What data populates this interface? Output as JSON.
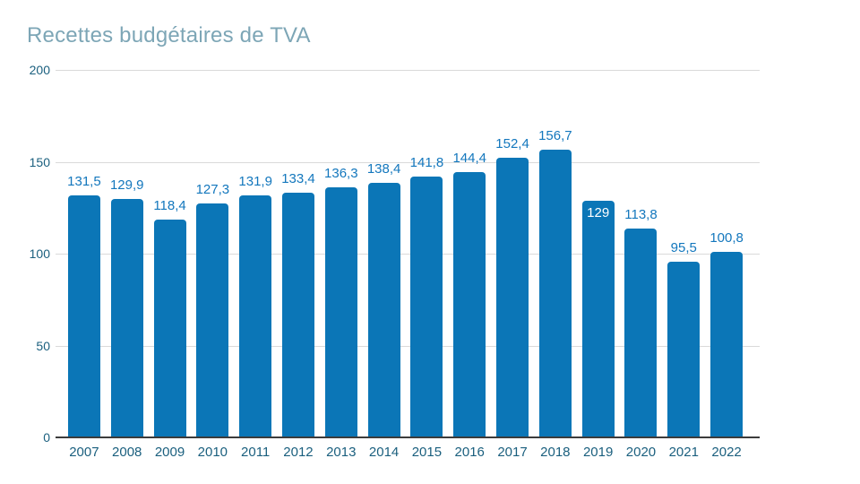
{
  "chart": {
    "title": "Recettes budgétaires de TVA"
  },
  "chart_data": {
    "type": "bar",
    "title": "Recettes budgétaires de TVA",
    "categories": [
      "2007",
      "2008",
      "2009",
      "2010",
      "2011",
      "2012",
      "2013",
      "2014",
      "2015",
      "2016",
      "2017",
      "2018",
      "2019",
      "2020",
      "2021",
      "2022"
    ],
    "values": [
      131.5,
      129.9,
      118.4,
      127.3,
      131.9,
      133.4,
      136.3,
      138.4,
      141.8,
      144.4,
      152.4,
      156.7,
      129,
      113.8,
      95.5,
      100.8
    ],
    "value_labels": [
      "131,5",
      "129,9",
      "118,4",
      "127,3",
      "131,9",
      "133,4",
      "136,3",
      "138,4",
      "141,8",
      "144,4",
      "152,4",
      "156,7",
      "129",
      "113,8",
      "95,5",
      "100,8"
    ],
    "inside_label_categories": [
      "2019"
    ],
    "xlabel": "",
    "ylabel": "",
    "ylim": [
      0,
      200
    ],
    "yticks": [
      0,
      50,
      100,
      150,
      200
    ],
    "grid": "horizontal",
    "legend": "none",
    "colors": {
      "bar": "#0b76b7",
      "value_label": "#1377bd",
      "value_label_inside": "#ffffff",
      "axis_label": "#1a5f7e",
      "title": "#7da6b6",
      "gridline": "#dadada",
      "baseline": "#3c3c3c",
      "background": "#ffffff"
    }
  }
}
